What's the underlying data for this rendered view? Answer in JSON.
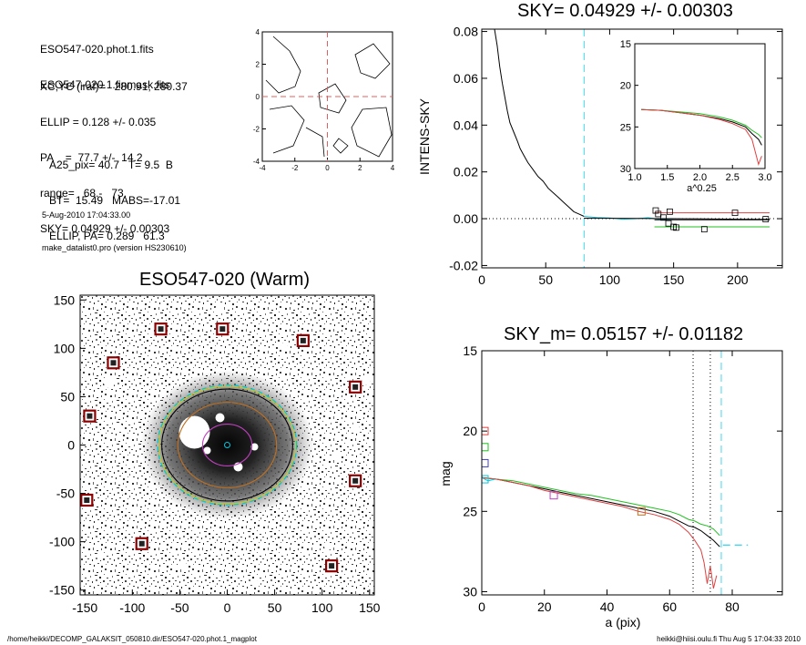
{
  "info": {
    "files": [
      "ESO547-020.phot.1.fits",
      "ESO547-020.1.finmask.fits"
    ],
    "params": [
      "XC,YC (iraf)=   280.91, 280.37",
      "ELLIP = 0.128 +/- 0.035",
      "PA    =  77.7 +/-  14.2",
      "range=   68.-   73.",
      "SKY= 0.04929 +/- 0.00303"
    ],
    "derived": [
      "A25_pix= 40.7   T= 9.5  B",
      "BT=  15.49   MABS=-17.01",
      "ELLIP, PA= 0.289   61.3"
    ],
    "date": "5-Aug-2010 17:04:33.00",
    "program": "make_datalist0.pro (version HS230610)"
  },
  "footer": {
    "left": "/home/heikki/DECOMP_GALAKSIT_050810.dir/ESO547-020.phot.1_magplot",
    "right": "heikki@hiisi.oulu.fi  Thu Aug  5 17:04:33 2010"
  },
  "chart_data": [
    {
      "type": "line",
      "panel": "contour-map",
      "title": "",
      "xlim": [
        -4,
        4
      ],
      "ylim": [
        -4,
        4
      ],
      "xticks": [
        "-4",
        "-2",
        "0",
        "2",
        "4"
      ],
      "yticks": [
        "-4",
        "-2",
        "0",
        "2",
        "4"
      ],
      "crosshair": {
        "x": 0,
        "y": 0,
        "color": "#e06060"
      }
    },
    {
      "type": "line",
      "panel": "sky-profile",
      "title": "SKY= 0.04929 +/- 0.00303",
      "xlabel": "",
      "ylabel": "INTENS-SKY",
      "xlim": [
        0,
        235
      ],
      "ylim": [
        -0.021,
        0.081
      ],
      "xticks": [
        "0",
        "50",
        "100",
        "150",
        "200"
      ],
      "yticks": [
        "-0.02",
        "0.00",
        "0.02",
        "0.04",
        "0.06",
        "0.08"
      ],
      "vline": 80,
      "series": [
        {
          "color": "#000000",
          "x": [
            10,
            12,
            14,
            16,
            18,
            20,
            22,
            25,
            28,
            30,
            33,
            36,
            40,
            44,
            48,
            52,
            56,
            60,
            64,
            68,
            72,
            76,
            80
          ],
          "y": [
            0.081,
            0.074,
            0.065,
            0.058,
            0.052,
            0.046,
            0.041,
            0.037,
            0.033,
            0.03,
            0.027,
            0.024,
            0.021,
            0.018,
            0.016,
            0.013,
            0.011,
            0.009,
            0.007,
            0.005,
            0.003,
            0.002,
            0.001
          ]
        },
        {
          "color": "#00c8e0",
          "x": [
            80,
            90,
            100,
            110,
            120,
            130,
            140,
            150
          ],
          "y": [
            0.001,
            0.0005,
            0.0003,
            -0.0002,
            0.0,
            0.0004,
            -0.0003,
            0.0
          ]
        },
        {
          "color": "#000000",
          "x": [
            80,
            120,
            160,
            200,
            225
          ],
          "y": [
            0.0002,
            0.0001,
            0.0,
            -0.0002,
            -0.0003
          ]
        },
        {
          "color": "#e04040",
          "x": [
            135,
            225
          ],
          "y": [
            0.0025,
            0.0025
          ]
        },
        {
          "color": "#20c020",
          "x": [
            135,
            225
          ],
          "y": [
            -0.0035,
            -0.0035
          ]
        },
        {
          "color": "#000000",
          "x": [
            135,
            225
          ],
          "y": [
            -0.0005,
            -0.0005
          ]
        }
      ],
      "squares": {
        "x": [
          136,
          138,
          142,
          146,
          147,
          150,
          152,
          174,
          198,
          222
        ],
        "y": [
          0.0035,
          0.002,
          0.0005,
          -0.002,
          0.003,
          -0.0035,
          -0.0038,
          -0.0045,
          0.0025,
          -0.0002
        ]
      },
      "inset": {
        "xlabel": "a^0.25",
        "xlim": [
          1.0,
          3.0
        ],
        "ylim": [
          15,
          30
        ],
        "xticks": [
          "1.0",
          "1.5",
          "2.0",
          "2.5",
          "3.0"
        ],
        "yticks": [
          "15",
          "20",
          "25",
          "30"
        ],
        "series": [
          {
            "color": "#000000",
            "x": [
              1.1,
              1.4,
              1.7,
              2.0,
              2.3,
              2.5,
              2.7,
              2.8,
              2.9,
              2.95
            ],
            "y": [
              22.9,
              23.0,
              23.3,
              23.6,
              24.0,
              24.4,
              25.0,
              25.8,
              26.5,
              27.2
            ]
          },
          {
            "color": "#20c020",
            "x": [
              1.1,
              1.4,
              1.7,
              2.0,
              2.3,
              2.5,
              2.7,
              2.8,
              2.9,
              2.95
            ],
            "y": [
              22.9,
              23.0,
              23.2,
              23.4,
              23.8,
              24.2,
              24.8,
              25.4,
              25.9,
              26.3
            ]
          },
          {
            "color": "#e04040",
            "x": [
              1.1,
              1.4,
              1.7,
              2.0,
              2.3,
              2.5,
              2.7,
              2.8,
              2.85,
              2.9,
              2.95
            ],
            "y": [
              22.9,
              23.0,
              23.3,
              23.6,
              24.1,
              24.6,
              25.3,
              26.5,
              28.0,
              29.5,
              28.5
            ]
          }
        ]
      }
    },
    {
      "type": "heatmap",
      "panel": "image",
      "title": "ESO547-020 (Warm)",
      "xlim": [
        -155,
        155
      ],
      "ylim": [
        -155,
        155
      ],
      "xticks": [
        "-150",
        "-100",
        "-50",
        "0",
        "50",
        "100",
        "150"
      ],
      "yticks": [
        "150",
        "100",
        "50",
        "0",
        "-50",
        "-100",
        "-150"
      ],
      "markers": {
        "x": [
          -70,
          -5,
          80,
          -120,
          -145,
          135,
          -148,
          135,
          -90,
          110
        ],
        "y": [
          120,
          120,
          108,
          85,
          30,
          60,
          -57,
          -37,
          -102,
          -125
        ]
      },
      "ellipses": [
        {
          "color": "#00c8e0",
          "a": 73,
          "b": 63,
          "pa": 0,
          "dashed": true
        },
        {
          "color": "#000000",
          "a": 69,
          "b": 59,
          "pa": 0
        },
        {
          "color": "#c8c820",
          "a": 72,
          "b": 62,
          "pa": 0
        },
        {
          "color": "#c07020",
          "a": 52,
          "b": 45,
          "pa": 0
        },
        {
          "color": "#c040c0",
          "a": 26,
          "b": 22,
          "pa": 0
        }
      ]
    },
    {
      "type": "line",
      "panel": "magnitude-profile",
      "title": "SKY_m=  0.05157 +/- 0.01182",
      "xlabel": "a (pix)",
      "ylabel": "mag",
      "xlim": [
        0,
        96
      ],
      "ylim": [
        15,
        30.2
      ],
      "xticks": [
        "0",
        "20",
        "40",
        "60",
        "80"
      ],
      "yticks": [
        "15",
        "20",
        "25",
        "30"
      ],
      "vlines_dotted": [
        67.5,
        73
      ],
      "vline_dashed": 76.5,
      "sky_segment": {
        "x": [
          77,
          85
        ],
        "y": [
          27.1,
          27.1
        ]
      },
      "series": [
        {
          "color": "#000000",
          "x": [
            0,
            5,
            10,
            15,
            20,
            25,
            30,
            35,
            40,
            45,
            50,
            55,
            60,
            63,
            66,
            68,
            70,
            72,
            74,
            75,
            76
          ],
          "y": [
            22.9,
            23.0,
            23.2,
            23.4,
            23.6,
            23.8,
            24.0,
            24.2,
            24.4,
            24.6,
            24.8,
            25.0,
            25.3,
            25.6,
            25.9,
            26.0,
            26.2,
            26.5,
            26.8,
            27.0,
            27.2
          ]
        },
        {
          "color": "#20c020",
          "x": [
            0,
            5,
            10,
            15,
            20,
            25,
            30,
            35,
            40,
            45,
            50,
            55,
            60,
            63,
            66,
            68,
            70,
            72,
            74,
            75,
            76
          ],
          "y": [
            22.9,
            23.0,
            23.1,
            23.3,
            23.5,
            23.7,
            23.9,
            24.0,
            24.2,
            24.4,
            24.6,
            24.8,
            25.0,
            25.2,
            25.5,
            25.6,
            25.8,
            25.9,
            26.1,
            26.3,
            26.5
          ]
        },
        {
          "color": "#e04040",
          "x": [
            0,
            5,
            10,
            15,
            20,
            25,
            30,
            35,
            40,
            45,
            50,
            55,
            60,
            63,
            66,
            68,
            70,
            71,
            72,
            73,
            74,
            75
          ],
          "y": [
            22.9,
            23.0,
            23.2,
            23.4,
            23.7,
            23.9,
            24.1,
            24.3,
            24.5,
            24.7,
            25.0,
            25.2,
            25.5,
            25.8,
            26.3,
            26.8,
            27.4,
            28.2,
            29.5,
            28.4,
            29.8,
            29.0
          ]
        },
        {
          "color": "#00c8e0",
          "x": [
            0,
            2,
            4
          ],
          "y": [
            22.9,
            23.1,
            23.0
          ]
        }
      ],
      "side_squares": [
        {
          "color": "#e04040",
          "y": 20.0
        },
        {
          "color": "#20c020",
          "y": 21.0
        },
        {
          "color": "#4040c0",
          "y": 22.0
        },
        {
          "color": "#00c8e0",
          "y": 23.0
        }
      ],
      "point_squares": [
        {
          "color": "#c040c0",
          "x": 23,
          "y": 24.0
        },
        {
          "color": "#c07020",
          "x": 51,
          "y": 25.0
        }
      ]
    }
  ]
}
